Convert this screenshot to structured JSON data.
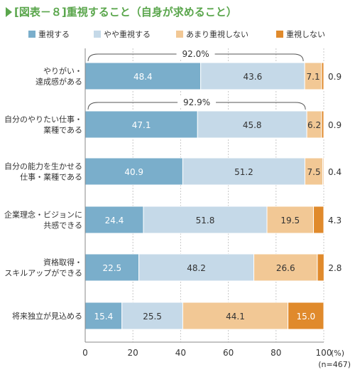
{
  "chart_data": {
    "type": "bar",
    "orientation": "horizontal",
    "stacked": true,
    "title": "[図表－８]重視すること（自身が求めること）",
    "categories": [
      [
        "やりがい・",
        "達成感がある"
      ],
      [
        "自分のやりたい仕事・",
        "業種である"
      ],
      [
        "自分の能力を生かせる",
        "仕事・業種である"
      ],
      [
        "企業理念・ビジョンに",
        "共感できる"
      ],
      [
        "資格取得・",
        "スキルアップができる"
      ],
      [
        "将来独立が見込める"
      ]
    ],
    "series": [
      {
        "name": "重視する",
        "color": "#7aaecb",
        "values": [
          48.4,
          47.1,
          40.9,
          24.4,
          22.5,
          15.4
        ]
      },
      {
        "name": "やや重視する",
        "color": "#c5d9e8",
        "values": [
          43.6,
          45.8,
          51.2,
          51.8,
          48.2,
          25.5
        ]
      },
      {
        "name": "あまり重視しない",
        "color": "#f2c895",
        "values": [
          7.1,
          6.2,
          7.5,
          19.5,
          26.6,
          44.1
        ]
      },
      {
        "name": "重視しない",
        "color": "#e08a2c",
        "values": [
          0.9,
          0.9,
          0.4,
          4.3,
          2.8,
          15.0
        ]
      }
    ],
    "totals": [
      {
        "index": 0,
        "label": "92.0%"
      },
      {
        "index": 1,
        "label": "92.9%"
      }
    ],
    "xlim": [
      0,
      100
    ],
    "xticks": [
      "0",
      "20",
      "40",
      "60",
      "80",
      "100"
    ],
    "xunit": "(%)",
    "note": "(n=467)",
    "grid": true,
    "legend_position": "top"
  }
}
